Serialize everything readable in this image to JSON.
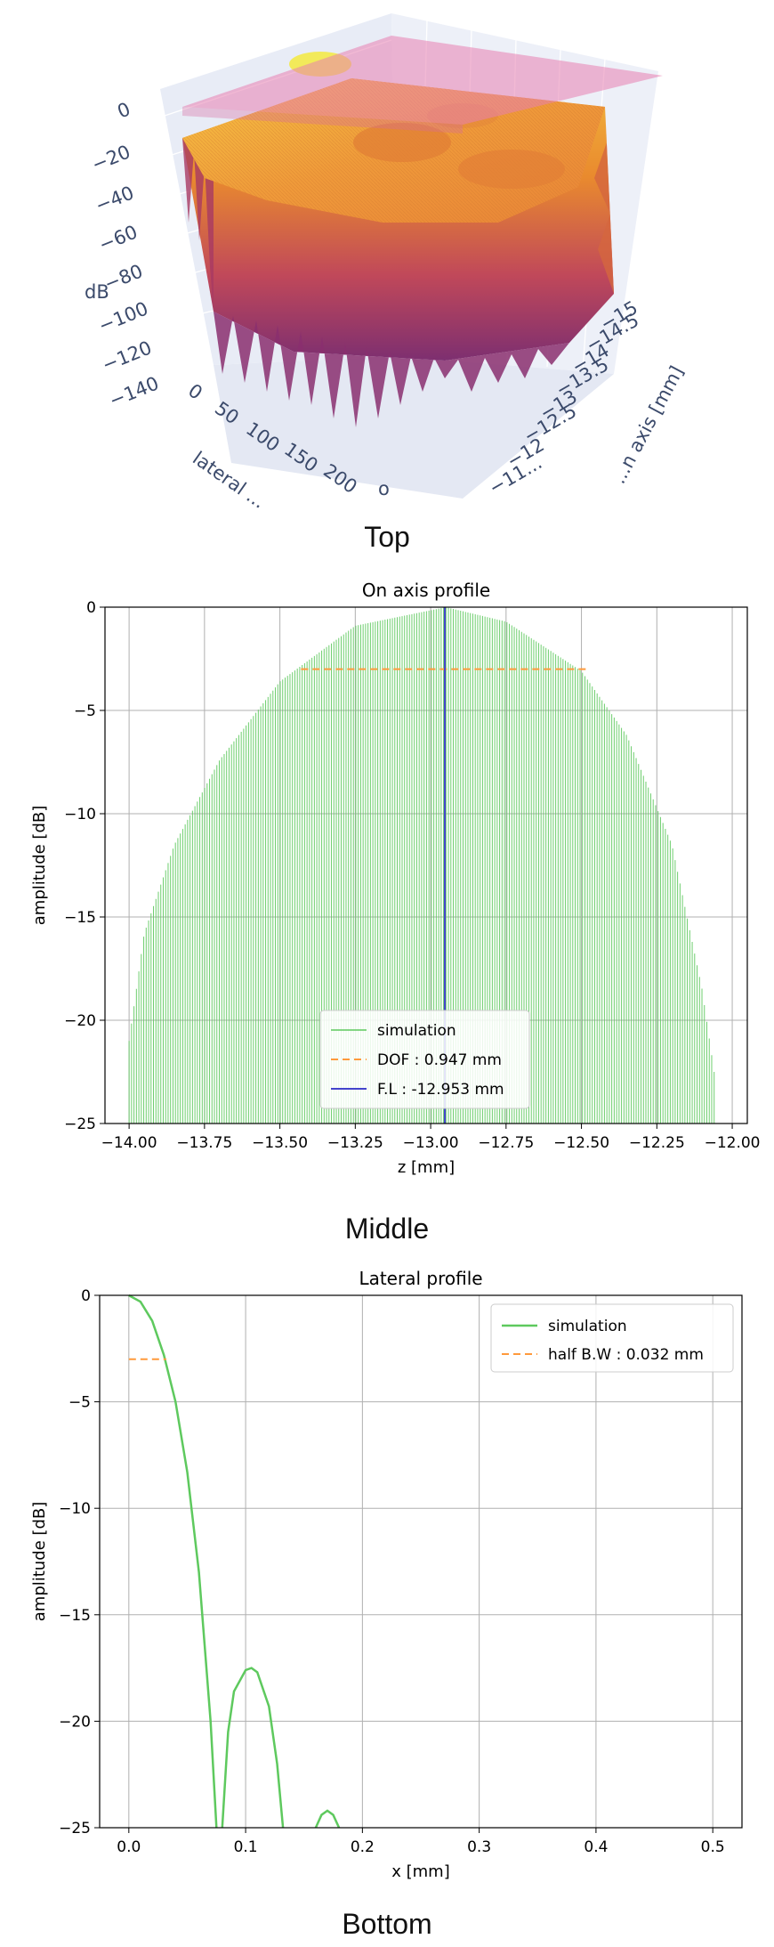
{
  "captions": {
    "top": "Top",
    "middle": "Middle",
    "bottom": "Bottom"
  },
  "chart_data": [
    {
      "type": "surface",
      "zlabel": "dB",
      "xlabel": "lateral ...",
      "ylabel": "...n axis [mm]",
      "z_ticks": [
        "0",
        "−20",
        "−40",
        "−60",
        "−80",
        "−100",
        "−120",
        "−140"
      ],
      "x_ticks": [
        "0",
        "50",
        "100",
        "150",
        "200"
      ],
      "y_ticks": [
        "−15",
        "−14.5",
        "−14",
        "−13.5",
        "−13",
        "−12.5",
        "−12",
        "−11..."
      ],
      "colors": {
        "surface_top": "#f0b23a",
        "surface_low": "#8b2e6d",
        "plane": "#e87fb0",
        "peak": "#f5f05a"
      }
    },
    {
      "type": "line",
      "title": "On axis profile",
      "xlabel": "z [mm]",
      "ylabel": "amplitude [dB]",
      "xlim": [
        -14.08,
        -11.95
      ],
      "ylim": [
        -25,
        0
      ],
      "x_ticks": [
        -14.0,
        -13.75,
        -13.5,
        -13.25,
        -13.0,
        -12.75,
        -12.5,
        -12.25,
        -12.0
      ],
      "x_tick_labels": [
        "−14.00",
        "−13.75",
        "−13.50",
        "−13.25",
        "−13.00",
        "−12.75",
        "−12.50",
        "−12.25",
        "−12.00"
      ],
      "y_ticks": [
        0,
        -5,
        -10,
        -15,
        -20,
        -25
      ],
      "y_tick_labels": [
        "0",
        "−5",
        "−10",
        "−15",
        "−20",
        "−25"
      ],
      "grid": true,
      "legend_position": "lower-center",
      "series": [
        {
          "name": "simulation",
          "color": "#5ec95e",
          "style": "oscillating-envelope",
          "x_start": -14.0,
          "x_end": -12.06,
          "peak_x": -12.95,
          "peak_y": 0,
          "envelope": [
            [
              -14.0,
              -21
            ],
            [
              -13.95,
              -15.8
            ],
            [
              -13.85,
              -11.5
            ],
            [
              -13.7,
              -7.4
            ],
            [
              -13.5,
              -3.6
            ],
            [
              -13.25,
              -0.9
            ],
            [
              -12.95,
              0
            ],
            [
              -12.75,
              -0.7
            ],
            [
              -12.5,
              -3.1
            ],
            [
              -12.35,
              -6.2
            ],
            [
              -12.2,
              -11.5
            ],
            [
              -12.1,
              -18.5
            ],
            [
              -12.06,
              -22.5
            ]
          ]
        },
        {
          "name": "DOF : 0.947 mm",
          "color": "#ff9a3c",
          "style": "dashed",
          "y": -3,
          "x_start": -13.43,
          "x_end": -12.48
        },
        {
          "name": "F.L : -12.953 mm",
          "color": "#4444cc",
          "style": "solid-vertical",
          "x": -12.953
        }
      ]
    },
    {
      "type": "line",
      "title": "Lateral profile",
      "xlabel": "x [mm]",
      "ylabel": "amplitude [dB]",
      "xlim": [
        -0.025,
        0.525
      ],
      "ylim": [
        -25,
        0
      ],
      "x_ticks": [
        0.0,
        0.1,
        0.2,
        0.3,
        0.4,
        0.5
      ],
      "x_tick_labels": [
        "0.0",
        "0.1",
        "0.2",
        "0.3",
        "0.4",
        "0.5"
      ],
      "y_ticks": [
        0,
        -5,
        -10,
        -15,
        -20,
        -25
      ],
      "y_tick_labels": [
        "0",
        "−5",
        "−10",
        "−15",
        "−20",
        "−25"
      ],
      "grid": true,
      "legend_position": "top-right",
      "series": [
        {
          "name": "simulation",
          "color": "#5ec95e",
          "segments": [
            [
              [
                0.0,
                0
              ],
              [
                0.01,
                -0.3
              ],
              [
                0.02,
                -1.2
              ],
              [
                0.03,
                -2.8
              ],
              [
                0.04,
                -5.0
              ],
              [
                0.05,
                -8.3
              ],
              [
                0.06,
                -13.0
              ],
              [
                0.07,
                -20.0
              ],
              [
                0.075,
                -25
              ]
            ],
            [
              [
                0.08,
                -25
              ],
              [
                0.085,
                -20.5
              ],
              [
                0.09,
                -18.6
              ],
              [
                0.1,
                -17.6
              ],
              [
                0.105,
                -17.5
              ],
              [
                0.11,
                -17.7
              ],
              [
                0.12,
                -19.3
              ],
              [
                0.127,
                -22
              ],
              [
                0.132,
                -25
              ]
            ],
            [
              [
                0.16,
                -25
              ],
              [
                0.165,
                -24.4
              ],
              [
                0.17,
                -24.2
              ],
              [
                0.175,
                -24.4
              ],
              [
                0.18,
                -25
              ]
            ]
          ]
        },
        {
          "name": "half B.W : 0.032 mm",
          "color": "#ff9a3c",
          "style": "dashed",
          "y": -3,
          "x_start": 0.0,
          "x_end": 0.032
        }
      ]
    }
  ]
}
